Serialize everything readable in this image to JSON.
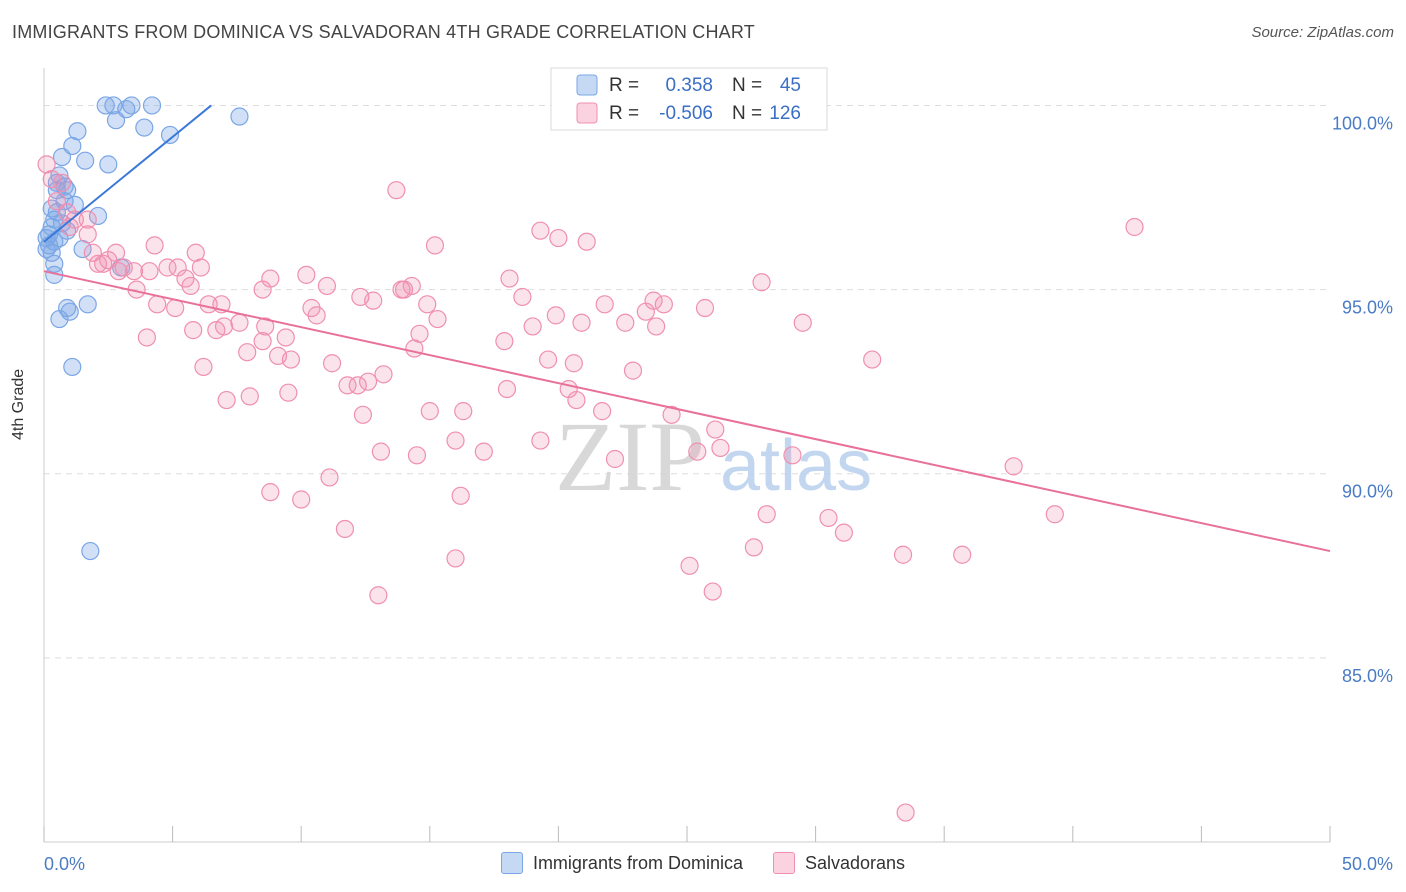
{
  "title": "IMMIGRANTS FROM DOMINICA VS SALVADORAN 4TH GRADE CORRELATION CHART",
  "source": "Source: ZipAtlas.com",
  "chart_data": {
    "type": "scatter",
    "title": "IMMIGRANTS FROM DOMINICA VS SALVADORAN 4TH GRADE CORRELATION CHART",
    "xlabel": "",
    "ylabel": "4th Grade",
    "xlim": [
      0,
      50
    ],
    "ylim": [
      80.0,
      100.8
    ],
    "x_tick_labels": [
      "0.0%",
      "50.0%"
    ],
    "y_ticks": [
      85,
      90,
      95,
      100
    ],
    "y_tick_labels": [
      "85.0%",
      "90.0%",
      "95.0%",
      "100.0%"
    ],
    "grid": true,
    "watermark": "ZIPatlas",
    "legend": {
      "r_label": "R =",
      "n_label": "N =",
      "entries": [
        {
          "name": "Immigrants from Dominica",
          "r": "0.358",
          "n": "45"
        },
        {
          "name": "Salvadorans",
          "r": "-0.506",
          "n": "126"
        }
      ]
    },
    "series": [
      {
        "name": "Immigrants from Dominica",
        "color": "#7aa6e6",
        "line_color": "#3a78d8",
        "trend": {
          "x": [
            0.0,
            6.5
          ],
          "y": [
            96.3,
            100.0
          ]
        },
        "points": [
          [
            2.4,
            100.0
          ],
          [
            3.4,
            100.0
          ],
          [
            2.7,
            100.0
          ],
          [
            3.2,
            99.9
          ],
          [
            4.2,
            100.0
          ],
          [
            7.6,
            99.7
          ],
          [
            2.8,
            99.6
          ],
          [
            3.9,
            99.4
          ],
          [
            4.9,
            99.2
          ],
          [
            1.3,
            99.3
          ],
          [
            1.1,
            98.9
          ],
          [
            1.6,
            98.5
          ],
          [
            0.7,
            98.6
          ],
          [
            0.6,
            98.1
          ],
          [
            0.8,
            97.8
          ],
          [
            0.9,
            97.7
          ],
          [
            0.5,
            97.7
          ],
          [
            0.8,
            97.4
          ],
          [
            0.3,
            97.2
          ],
          [
            0.5,
            97.1
          ],
          [
            2.1,
            97.0
          ],
          [
            0.4,
            96.9
          ],
          [
            0.2,
            96.5
          ],
          [
            0.6,
            96.4
          ],
          [
            0.1,
            96.4
          ],
          [
            0.4,
            96.3
          ],
          [
            0.1,
            96.1
          ],
          [
            0.3,
            96.0
          ],
          [
            1.5,
            96.1
          ],
          [
            0.4,
            95.7
          ],
          [
            3.0,
            95.6
          ],
          [
            0.4,
            95.4
          ],
          [
            1.7,
            94.6
          ],
          [
            1.0,
            94.4
          ],
          [
            0.9,
            94.5
          ],
          [
            0.6,
            94.2
          ],
          [
            1.1,
            92.9
          ],
          [
            1.8,
            87.9
          ],
          [
            0.7,
            96.8
          ],
          [
            1.2,
            97.3
          ],
          [
            0.3,
            96.7
          ],
          [
            2.5,
            98.4
          ],
          [
            0.5,
            97.9
          ],
          [
            0.9,
            96.6
          ],
          [
            0.2,
            96.2
          ]
        ]
      },
      {
        "name": "Salvadorans",
        "color": "#f08fb0",
        "line_color": "#e8709a",
        "trend": {
          "x": [
            0.0,
            50.0
          ],
          "y": [
            95.5,
            87.9
          ]
        },
        "points": [
          [
            0.1,
            98.4
          ],
          [
            0.3,
            98.0
          ],
          [
            0.7,
            97.9
          ],
          [
            0.5,
            97.4
          ],
          [
            0.9,
            97.1
          ],
          [
            1.2,
            96.9
          ],
          [
            1.0,
            96.7
          ],
          [
            1.7,
            96.9
          ],
          [
            1.7,
            96.5
          ],
          [
            1.9,
            96.0
          ],
          [
            2.8,
            96.0
          ],
          [
            2.3,
            95.7
          ],
          [
            2.5,
            95.8
          ],
          [
            3.1,
            95.6
          ],
          [
            2.9,
            95.5
          ],
          [
            3.5,
            95.5
          ],
          [
            4.1,
            95.5
          ],
          [
            4.8,
            95.6
          ],
          [
            5.2,
            95.6
          ],
          [
            5.9,
            96.0
          ],
          [
            4.3,
            96.2
          ],
          [
            5.5,
            95.3
          ],
          [
            5.7,
            95.1
          ],
          [
            3.6,
            95.0
          ],
          [
            4.4,
            94.6
          ],
          [
            5.1,
            94.5
          ],
          [
            6.4,
            94.6
          ],
          [
            6.9,
            94.6
          ],
          [
            7.0,
            94.0
          ],
          [
            6.7,
            93.9
          ],
          [
            7.6,
            94.1
          ],
          [
            5.8,
            93.9
          ],
          [
            4.0,
            93.7
          ],
          [
            6.2,
            92.9
          ],
          [
            7.9,
            93.3
          ],
          [
            8.5,
            93.6
          ],
          [
            8.6,
            94.0
          ],
          [
            9.4,
            93.7
          ],
          [
            9.1,
            93.2
          ],
          [
            9.6,
            93.1
          ],
          [
            8.8,
            95.3
          ],
          [
            8.5,
            95.0
          ],
          [
            10.2,
            95.4
          ],
          [
            10.4,
            94.5
          ],
          [
            10.6,
            94.3
          ],
          [
            11.2,
            93.0
          ],
          [
            11.8,
            92.4
          ],
          [
            12.2,
            92.4
          ],
          [
            12.6,
            92.5
          ],
          [
            13.2,
            92.7
          ],
          [
            12.3,
            94.8
          ],
          [
            12.8,
            94.7
          ],
          [
            13.9,
            95.0
          ],
          [
            14.0,
            95.0
          ],
          [
            14.3,
            95.1
          ],
          [
            13.7,
            97.7
          ],
          [
            15.2,
            96.2
          ],
          [
            14.9,
            94.6
          ],
          [
            15.3,
            94.2
          ],
          [
            14.6,
            93.8
          ],
          [
            14.4,
            93.4
          ],
          [
            7.1,
            92.0
          ],
          [
            8.0,
            92.1
          ],
          [
            9.5,
            92.2
          ],
          [
            12.4,
            91.6
          ],
          [
            15.0,
            91.7
          ],
          [
            16.3,
            91.7
          ],
          [
            18.0,
            92.3
          ],
          [
            16.0,
            90.9
          ],
          [
            17.1,
            90.6
          ],
          [
            13.1,
            90.6
          ],
          [
            14.5,
            90.5
          ],
          [
            8.8,
            89.5
          ],
          [
            10.0,
            89.3
          ],
          [
            11.1,
            89.9
          ],
          [
            11.7,
            88.5
          ],
          [
            16.2,
            89.4
          ],
          [
            16.0,
            87.7
          ],
          [
            13.0,
            86.7
          ],
          [
            18.1,
            95.3
          ],
          [
            18.6,
            94.8
          ],
          [
            17.9,
            93.6
          ],
          [
            19.0,
            94.0
          ],
          [
            19.6,
            93.1
          ],
          [
            20.6,
            93.0
          ],
          [
            19.3,
            96.6
          ],
          [
            20.0,
            96.4
          ],
          [
            21.1,
            96.3
          ],
          [
            19.9,
            94.3
          ],
          [
            20.9,
            94.1
          ],
          [
            21.8,
            94.6
          ],
          [
            22.6,
            94.1
          ],
          [
            23.7,
            94.7
          ],
          [
            23.8,
            94.0
          ],
          [
            22.9,
            92.8
          ],
          [
            24.1,
            94.6
          ],
          [
            23.4,
            94.4
          ],
          [
            20.4,
            92.3
          ],
          [
            20.7,
            92.0
          ],
          [
            21.7,
            91.7
          ],
          [
            25.7,
            94.5
          ],
          [
            27.9,
            95.2
          ],
          [
            29.5,
            94.1
          ],
          [
            32.2,
            93.1
          ],
          [
            26.3,
            90.7
          ],
          [
            26.1,
            91.2
          ],
          [
            25.4,
            90.6
          ],
          [
            28.1,
            88.9
          ],
          [
            29.1,
            90.5
          ],
          [
            30.5,
            88.8
          ],
          [
            31.1,
            88.4
          ],
          [
            27.6,
            88.0
          ],
          [
            25.1,
            87.5
          ],
          [
            26.0,
            86.8
          ],
          [
            33.4,
            87.8
          ],
          [
            35.7,
            87.8
          ],
          [
            37.7,
            90.2
          ],
          [
            39.3,
            88.9
          ],
          [
            42.4,
            96.7
          ],
          [
            33.5,
            80.8
          ],
          [
            19.3,
            90.9
          ],
          [
            24.4,
            91.6
          ],
          [
            22.2,
            90.4
          ],
          [
            6.1,
            95.6
          ],
          [
            2.1,
            95.7
          ],
          [
            11.0,
            95.1
          ]
        ]
      }
    ]
  }
}
